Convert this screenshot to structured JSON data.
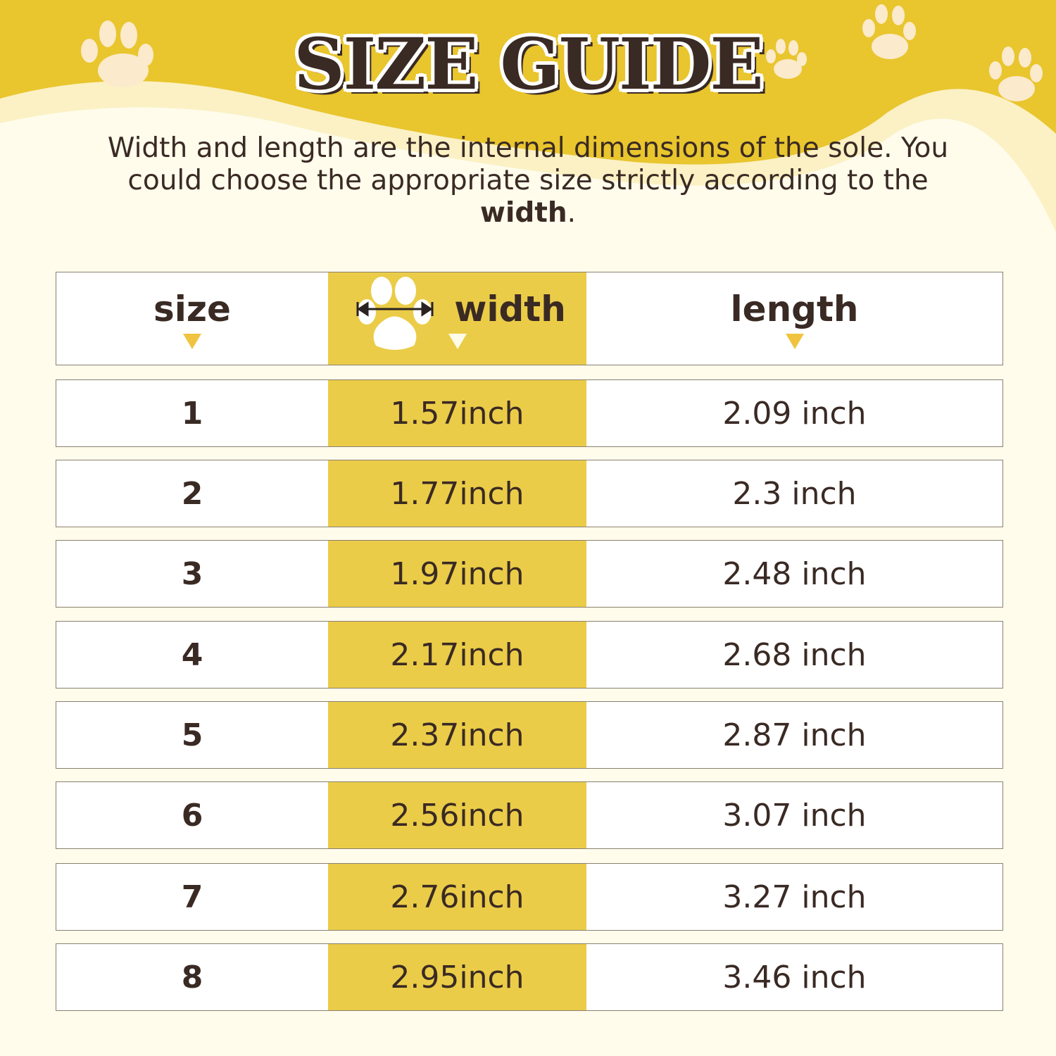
{
  "title": "SIZE GUIDE",
  "description": {
    "text_before": "Width and length are the internal dimensions of the sole. You could choose the appropriate size strictly according to the ",
    "bold": "width",
    "text_after": "."
  },
  "colors": {
    "brand_yellow": "#e9c52e",
    "column_highlight": "#ebcc48",
    "text": "#3a2a24",
    "cream": "#fffbe8"
  },
  "table": {
    "headers": [
      "size",
      "width",
      "length"
    ],
    "width_header_icon": "paw-width-measure-icon",
    "rows": [
      [
        "1",
        "1.57inch",
        "2.09 inch"
      ],
      [
        "2",
        "1.77inch",
        "2.3 inch"
      ],
      [
        "3",
        "1.97inch",
        "2.48 inch"
      ],
      [
        "4",
        "2.17inch",
        "2.68 inch"
      ],
      [
        "5",
        "2.37inch",
        "2.87 inch"
      ],
      [
        "6",
        "2.56inch",
        "3.07 inch"
      ],
      [
        "7",
        "2.76inch",
        "3.27 inch"
      ],
      [
        "8",
        "2.95inch",
        "3.46 inch"
      ]
    ]
  }
}
